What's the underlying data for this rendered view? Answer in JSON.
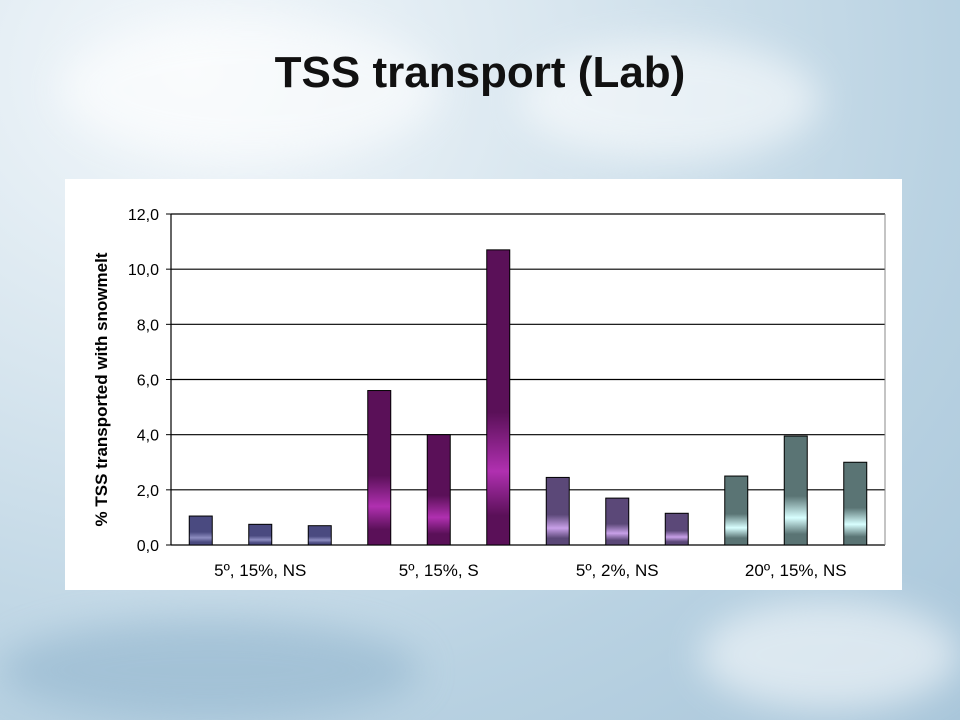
{
  "slide": {
    "title": "TSS transport (Lab)"
  },
  "chart_data": {
    "type": "bar",
    "title": "",
    "ylabel": "% TSS transported with snowmelt",
    "xlabel": "",
    "ylim": [
      0,
      12
    ],
    "yticks": [
      "0,0",
      "2,0",
      "4,0",
      "6,0",
      "8,0",
      "10,0",
      "12,0"
    ],
    "grid": true,
    "legend": "none",
    "groups": [
      {
        "label": "5º, 15%, NS",
        "values": [
          1.05,
          0.75,
          0.7
        ],
        "color": "#4a4a80"
      },
      {
        "label": "5º, 15%, S",
        "values": [
          5.6,
          4.0,
          10.7
        ],
        "color": "#5a1058"
      },
      {
        "label": "5º, 2%, NS",
        "values": [
          2.45,
          1.7,
          1.15
        ],
        "color": "#5b4878"
      },
      {
        "label": "20º, 15%, NS",
        "values": [
          2.5,
          3.95,
          3.0
        ],
        "color": "#5a7474"
      }
    ]
  }
}
